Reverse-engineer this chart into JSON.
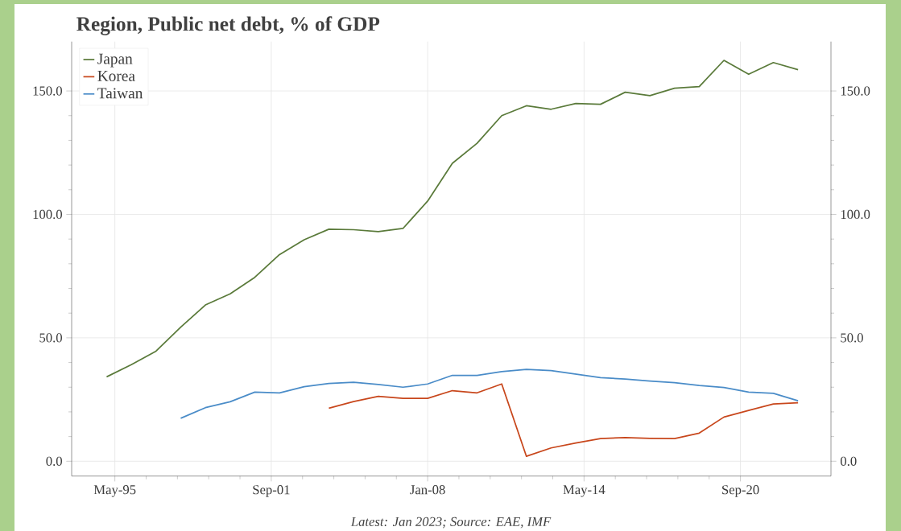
{
  "chart_data": {
    "type": "line",
    "title": "Region, Public net debt, % of GDP",
    "x": [
      "1995-01",
      "1996-01",
      "1997-01",
      "1998-01",
      "1999-01",
      "2000-01",
      "2001-01",
      "2002-01",
      "2003-01",
      "2004-01",
      "2005-01",
      "2006-01",
      "2007-01",
      "2008-01",
      "2009-01",
      "2010-01",
      "2011-01",
      "2012-01",
      "2013-01",
      "2014-01",
      "2015-01",
      "2016-01",
      "2017-01",
      "2018-01",
      "2019-01",
      "2020-01",
      "2021-01",
      "2022-01",
      "2023-01"
    ],
    "series": [
      {
        "name": "Japan",
        "color": "#5a7a3a",
        "values": [
          34.2,
          39.1,
          44.6,
          54.3,
          63.3,
          67.8,
          74.5,
          83.7,
          89.7,
          94.0,
          93.8,
          93.0,
          94.3,
          105.4,
          120.7,
          128.8,
          140.0,
          144.0,
          142.6,
          144.9,
          144.6,
          149.5,
          148.1,
          151.1,
          151.8,
          162.4,
          156.8,
          161.5,
          158.6
        ]
      },
      {
        "name": "Korea",
        "color": "#c8471c",
        "values": [
          null,
          null,
          null,
          null,
          null,
          null,
          null,
          null,
          null,
          21.5,
          24.2,
          26.3,
          25.5,
          25.5,
          28.6,
          27.7,
          31.3,
          2.0,
          5.4,
          7.4,
          9.2,
          9.6,
          9.3,
          9.2,
          11.4,
          17.9,
          20.6,
          23.2,
          23.7
        ]
      },
      {
        "name": "Taiwan",
        "color": "#4a8cc8",
        "values": [
          null,
          null,
          null,
          17.4,
          21.7,
          24.1,
          28.0,
          27.7,
          30.2,
          31.5,
          32.0,
          31.1,
          30.0,
          31.3,
          34.8,
          34.8,
          36.3,
          37.2,
          36.7,
          35.3,
          33.9,
          33.3,
          32.5,
          31.8,
          30.7,
          29.9,
          28.0,
          27.5,
          24.5
        ]
      }
    ],
    "xlim": [
      "1993-08",
      "2024-05"
    ],
    "xticks": [
      {
        "value": "1995-05",
        "label": "May-95"
      },
      {
        "value": "2001-09",
        "label": "Sep-01"
      },
      {
        "value": "2008-01",
        "label": "Jan-08"
      },
      {
        "value": "2014-05",
        "label": "May-14"
      },
      {
        "value": "2020-09",
        "label": "Sep-20"
      }
    ],
    "ylim": [
      -6,
      170
    ],
    "yticks": [
      {
        "value": 0,
        "label": "0.0"
      },
      {
        "value": 50,
        "label": "50.0"
      },
      {
        "value": 100,
        "label": "100.0"
      },
      {
        "value": 150,
        "label": "150.0"
      }
    ],
    "y2lim": [
      -6,
      170
    ],
    "y2ticks": [
      {
        "value": 0,
        "label": "0.0"
      },
      {
        "value": 50,
        "label": "50.0"
      },
      {
        "value": 100,
        "label": "100.0"
      },
      {
        "value": 150,
        "label": "150.0"
      }
    ],
    "grid": true,
    "legend": "top left",
    "annotations": [
      "Latest: Jan 2023; Source: EAE, IMF"
    ]
  }
}
